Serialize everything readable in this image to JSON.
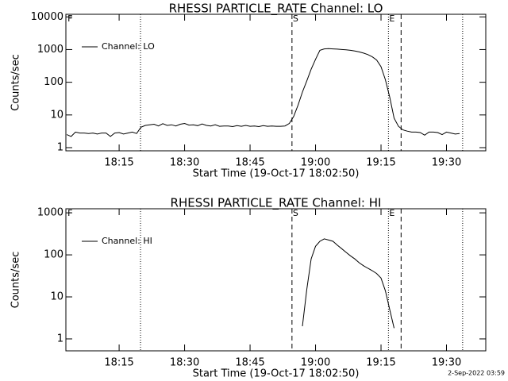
{
  "chart_data": [
    {
      "type": "line",
      "title": "RHESSI PARTICLE_RATE Channel: LO",
      "xlabel": "Start Time (19-Oct-17 18:02:50)",
      "ylabel": "Counts/sec",
      "ylog": true,
      "ylim": [
        0.8,
        12000
      ],
      "yticks": [
        1,
        10,
        100,
        1000,
        10000
      ],
      "xlim": [
        1082.8,
        1179
      ],
      "xticks": [
        {
          "value": 1095,
          "label": "18:15"
        },
        {
          "value": 1110,
          "label": "18:30"
        },
        {
          "value": 1125,
          "label": "18:45"
        },
        {
          "value": 1140,
          "label": "19:00"
        },
        {
          "value": 1155,
          "label": "19:15"
        },
        {
          "value": 1170,
          "label": "19:30"
        }
      ],
      "markers": [
        {
          "x": 1099.9,
          "style": "dotted"
        },
        {
          "x": 1134.6,
          "style": "dashed"
        },
        {
          "x": 1156.7,
          "style": "dotted"
        },
        {
          "x": 1159.6,
          "style": "dashed"
        },
        {
          "x": 1173.7,
          "style": "dotted"
        }
      ],
      "annotations": [
        {
          "text": "F",
          "x": 1083
        },
        {
          "text": "S",
          "x": 1134.6
        },
        {
          "text": "E",
          "x": 1156.7
        }
      ],
      "legend": "upper left",
      "series": [
        {
          "name": "Channel: LO",
          "color": "#000000",
          "x": [
            1083,
            1084,
            1085,
            1086,
            1087,
            1088,
            1089,
            1090,
            1091,
            1092,
            1093,
            1094,
            1095,
            1096,
            1097,
            1098,
            1099,
            1100,
            1101,
            1102,
            1103,
            1104,
            1105,
            1106,
            1107,
            1108,
            1109,
            1110,
            1111,
            1112,
            1113,
            1114,
            1115,
            1116,
            1117,
            1118,
            1119,
            1120,
            1121,
            1122,
            1123,
            1124,
            1125,
            1126,
            1127,
            1128,
            1129,
            1130,
            1131,
            1132,
            1133,
            1134,
            1135,
            1136,
            1137,
            1138,
            1139,
            1140,
            1141,
            1142,
            1143,
            1144,
            1145,
            1146,
            1147,
            1148,
            1149,
            1150,
            1151,
            1152,
            1153,
            1154,
            1155,
            1156,
            1157,
            1158,
            1159,
            1160,
            1161,
            1162,
            1163,
            1164,
            1165,
            1166,
            1167,
            1168,
            1169,
            1170,
            1171,
            1172,
            1173
          ],
          "values": [
            2.5,
            2.2,
            3,
            2.8,
            2.8,
            2.7,
            2.8,
            2.6,
            2.8,
            2.8,
            2.2,
            2.8,
            2.9,
            2.6,
            2.8,
            3,
            2.7,
            4.2,
            4.8,
            5,
            5.2,
            4.6,
            5.4,
            4.8,
            5,
            4.6,
            5.2,
            5.5,
            4.9,
            5,
            4.7,
            5.3,
            4.8,
            4.6,
            5,
            4.5,
            4.6,
            4.6,
            4.4,
            4.7,
            4.5,
            4.8,
            4.5,
            4.6,
            4.4,
            4.7,
            4.5,
            4.6,
            4.5,
            4.5,
            4.6,
            5.5,
            9,
            20,
            50,
            110,
            250,
            500,
            950,
            1050,
            1070,
            1050,
            1030,
            1000,
            980,
            950,
            900,
            850,
            780,
            700,
            600,
            480,
            300,
            120,
            35,
            8,
            4.5,
            3.5,
            3.2,
            3,
            3,
            2.9,
            2.4,
            3,
            3,
            2.9,
            2.5,
            3,
            2.8,
            2.6,
            2.7
          ]
        }
      ]
    },
    {
      "type": "line",
      "title": "RHESSI PARTICLE_RATE Channel: HI",
      "xlabel": "Start Time (19-Oct-17 18:02:50)",
      "ylabel": "Counts/sec",
      "ylog": true,
      "ylim": [
        0.52,
        1250
      ],
      "yticks": [
        1,
        10,
        100,
        1000
      ],
      "xlim": [
        1082.8,
        1179
      ],
      "xticks": [
        {
          "value": 1095,
          "label": "18:15"
        },
        {
          "value": 1110,
          "label": "18:30"
        },
        {
          "value": 1125,
          "label": "18:45"
        },
        {
          "value": 1140,
          "label": "19:00"
        },
        {
          "value": 1155,
          "label": "19:15"
        },
        {
          "value": 1170,
          "label": "19:30"
        }
      ],
      "markers": [
        {
          "x": 1099.9,
          "style": "dotted"
        },
        {
          "x": 1134.6,
          "style": "dashed"
        },
        {
          "x": 1156.7,
          "style": "dotted"
        },
        {
          "x": 1159.6,
          "style": "dashed"
        },
        {
          "x": 1173.7,
          "style": "dotted"
        }
      ],
      "annotations": [
        {
          "text": "F",
          "x": 1083
        },
        {
          "text": "S",
          "x": 1134.6
        },
        {
          "text": "E",
          "x": 1156.7
        }
      ],
      "legend": "upper left",
      "series": [
        {
          "name": "Channel: HI",
          "color": "#000000",
          "x": [
            1137,
            1138,
            1139,
            1140,
            1141,
            1142,
            1143,
            1144,
            1145,
            1146,
            1147,
            1148,
            1149,
            1150,
            1151,
            1152,
            1153,
            1154,
            1155,
            1156,
            1157,
            1158
          ],
          "values": [
            2,
            15,
            80,
            160,
            210,
            240,
            225,
            210,
            170,
            140,
            115,
            95,
            80,
            65,
            55,
            48,
            42,
            36,
            28,
            14,
            5,
            1.8
          ]
        }
      ]
    }
  ],
  "timestamp": "2-Sep-2022 03:59"
}
